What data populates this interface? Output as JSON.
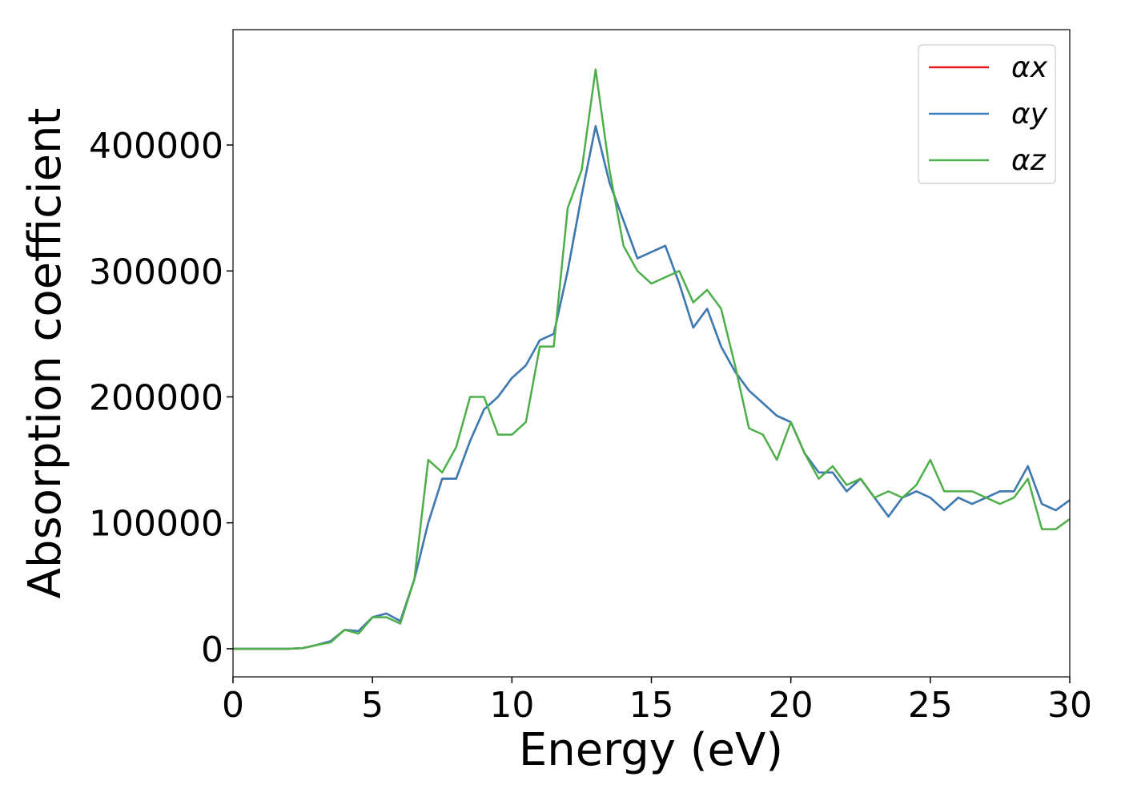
{
  "chart_data": {
    "type": "line",
    "xlabel": "Energy (eV)",
    "ylabel": "Absorption coefficient",
    "x": [
      0,
      0.5,
      1,
      1.5,
      2,
      2.5,
      3,
      3.5,
      4,
      4.5,
      5,
      5.5,
      6,
      6.5,
      7,
      7.5,
      8,
      8.5,
      9,
      9.5,
      10,
      10.5,
      11,
      11.5,
      12,
      12.5,
      13,
      13.5,
      14,
      14.5,
      15,
      15.5,
      16,
      16.5,
      17,
      17.5,
      18,
      18.5,
      19,
      19.5,
      20,
      20.5,
      21,
      21.5,
      22,
      22.5,
      23,
      23.5,
      24,
      24.5,
      25,
      25.5,
      26,
      26.5,
      27,
      27.5,
      28,
      28.5,
      29,
      29.5,
      30
    ],
    "series": [
      {
        "name": "αx",
        "color": "#e41a1c",
        "values": [
          0,
          0,
          0,
          0,
          0,
          500,
          3000,
          6000,
          15000,
          14000,
          25000,
          28000,
          22000,
          55000,
          100000,
          135000,
          135000,
          165000,
          190000,
          200000,
          215000,
          225000,
          245000,
          250000,
          300000,
          360000,
          415000,
          370000,
          340000,
          310000,
          315000,
          320000,
          290000,
          255000,
          270000,
          240000,
          220000,
          205000,
          195000,
          185000,
          180000,
          155000,
          140000,
          140000,
          125000,
          135000,
          120000,
          105000,
          120000,
          125000,
          120000,
          110000,
          120000,
          115000,
          120000,
          125000,
          125000,
          145000,
          115000,
          110000,
          118000
        ]
      },
      {
        "name": "αy",
        "color": "#377eb8",
        "values": [
          0,
          0,
          0,
          0,
          0,
          500,
          3000,
          6000,
          15000,
          14000,
          25000,
          28000,
          22000,
          55000,
          100000,
          135000,
          135000,
          165000,
          190000,
          200000,
          215000,
          225000,
          245000,
          250000,
          300000,
          360000,
          415000,
          370000,
          340000,
          310000,
          315000,
          320000,
          290000,
          255000,
          270000,
          240000,
          220000,
          205000,
          195000,
          185000,
          180000,
          155000,
          140000,
          140000,
          125000,
          135000,
          120000,
          105000,
          120000,
          125000,
          120000,
          110000,
          120000,
          115000,
          120000,
          125000,
          125000,
          145000,
          115000,
          110000,
          118000
        ]
      },
      {
        "name": "αz",
        "color": "#4daf4a",
        "values": [
          0,
          0,
          0,
          0,
          0,
          500,
          3000,
          5000,
          15000,
          12000,
          25000,
          25000,
          20000,
          55000,
          150000,
          140000,
          160000,
          200000,
          200000,
          170000,
          170000,
          180000,
          240000,
          240000,
          350000,
          380000,
          460000,
          380000,
          320000,
          300000,
          290000,
          295000,
          300000,
          275000,
          285000,
          270000,
          225000,
          175000,
          170000,
          150000,
          180000,
          155000,
          135000,
          145000,
          130000,
          135000,
          120000,
          125000,
          120000,
          130000,
          150000,
          125000,
          125000,
          125000,
          120000,
          115000,
          120000,
          135000,
          95000,
          95000,
          103000
        ]
      }
    ],
    "xlim": [
      0,
      30
    ],
    "xticks": [
      0,
      5,
      10,
      15,
      20,
      25,
      30
    ],
    "ylim": [
      -22300,
      491600
    ],
    "yticks": [
      0,
      100000,
      200000,
      300000,
      400000
    ],
    "legend": "upper right"
  }
}
